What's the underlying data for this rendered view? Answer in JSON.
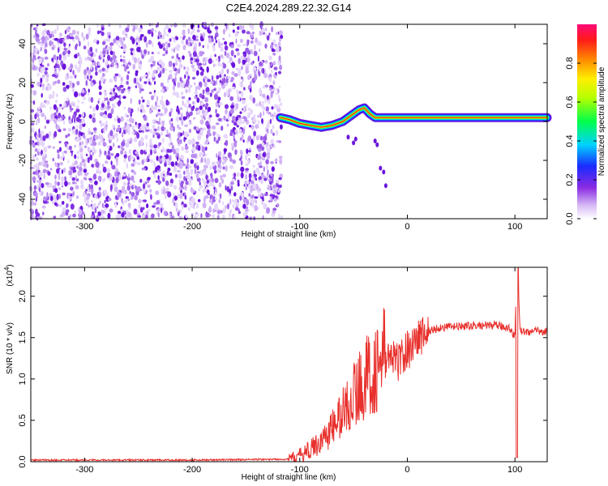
{
  "title": "C2E4.2024.289.22.32.G14",
  "chart_data": [
    {
      "type": "heatmap",
      "xlabel": "Height of straight line (km)",
      "ylabel": "Frequency (Hz)",
      "xlim": [
        -350,
        130
      ],
      "ylim": [
        -50,
        50
      ],
      "xticks": [
        -300,
        -200,
        -100,
        0,
        100
      ],
      "yticks": [
        -40,
        -20,
        0,
        20,
        40
      ],
      "noise_region": [
        -350,
        -117
      ],
      "signal_track": {
        "x": [
          -118,
          -110,
          -100,
          -90,
          -80,
          -70,
          -60,
          -50,
          -45,
          -40,
          -35,
          -30,
          -20,
          -10,
          0,
          20,
          40,
          60,
          80,
          100,
          130
        ],
        "y": [
          2,
          1,
          -1,
          -2,
          -3,
          -2,
          0,
          4,
          6,
          7,
          4,
          2,
          2,
          2,
          2,
          2,
          2,
          2,
          2,
          2,
          2
        ]
      },
      "colorbar": {
        "label": "Normalized spectral amplitude",
        "range": [
          0,
          1
        ],
        "ticks": [
          0.0,
          0.2,
          0.4,
          0.6,
          0.8
        ]
      }
    },
    {
      "type": "line",
      "xlabel": "Height of straight line (km)",
      "ylabel": "SNR (10 * v/v)",
      "yscale_note": "(x10",
      "yscale_exp": "4",
      "xlim": [
        -350,
        130
      ],
      "ylim": [
        0,
        2.35
      ],
      "xticks": [
        -300,
        -200,
        -100,
        0,
        100
      ],
      "yticks": [
        0.0,
        0.5,
        1.0,
        1.5,
        2.0
      ],
      "line_color": "#e8302c",
      "series": [
        {
          "x": [
            -350,
            -300,
            -200,
            -110,
            -100,
            -90,
            -80,
            -70,
            -60,
            -50,
            -40,
            -30,
            -20,
            -10,
            0,
            10,
            20,
            30,
            40,
            60,
            80,
            95,
            100,
            102,
            105,
            110,
            130
          ],
          "y": [
            0.02,
            0.02,
            0.02,
            0.03,
            0.08,
            0.15,
            0.25,
            0.4,
            0.6,
            0.8,
            1.0,
            1.1,
            1.3,
            1.2,
            1.35,
            1.5,
            1.58,
            1.62,
            1.63,
            1.64,
            1.65,
            1.62,
            1.5,
            2.35,
            1.58,
            1.57,
            1.58
          ]
        }
      ]
    }
  ]
}
